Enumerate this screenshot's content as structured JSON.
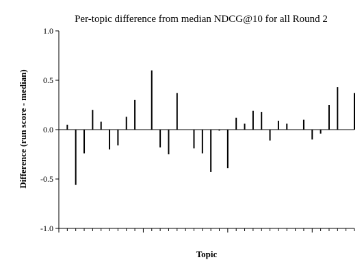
{
  "chart_data": {
    "type": "bar",
    "title": "Per-topic difference from median NDCG@10 for all Round 2",
    "xlabel": "Topic",
    "ylabel": "Difference (run score - median)",
    "ylim": [
      -1.0,
      1.0
    ],
    "yticks": [
      "1.0",
      "0.5",
      "0.0",
      "-0.5",
      "-1.0"
    ],
    "ytick_values": [
      1.0,
      0.5,
      0.0,
      -0.5,
      -1.0
    ],
    "xlim": [
      0,
      35
    ],
    "xtick_minor_step": 1,
    "xtick_major_step": 10,
    "grid": false,
    "x": [
      1,
      2,
      3,
      4,
      5,
      6,
      7,
      8,
      9,
      10,
      11,
      12,
      13,
      14,
      15,
      16,
      17,
      18,
      19,
      20,
      21,
      22,
      23,
      24,
      25,
      26,
      27,
      28,
      29,
      30,
      31,
      32,
      33,
      34,
      35
    ],
    "values": [
      0.05,
      -0.56,
      -0.24,
      0.2,
      0.08,
      -0.2,
      -0.16,
      0.13,
      0.3,
      0.0,
      0.6,
      -0.18,
      -0.25,
      0.37,
      0.0,
      -0.19,
      -0.24,
      -0.43,
      -0.01,
      -0.39,
      0.12,
      0.06,
      0.19,
      0.18,
      -0.11,
      0.09,
      0.06,
      0.0,
      0.1,
      -0.1,
      -0.04,
      0.25,
      0.43,
      0.0,
      0.37
    ]
  }
}
